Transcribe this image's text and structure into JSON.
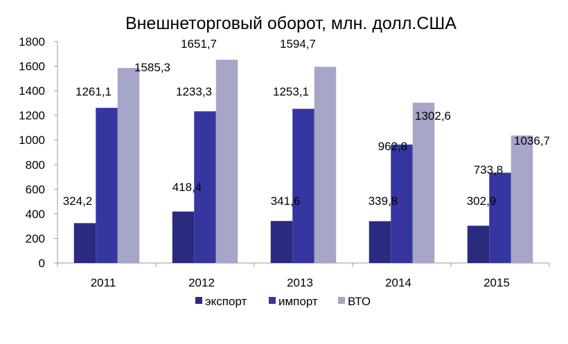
{
  "chart_data": {
    "type": "bar",
    "title": "Внешнеторговый оборот, млн. долл.США",
    "xlabel": "",
    "ylabel": "",
    "categories": [
      "2011",
      "2012",
      "2013",
      "2014",
      "2015"
    ],
    "series": [
      {
        "name": "экспорт",
        "color": "#2A2A7E",
        "values": [
          324.2,
          418.4,
          341.6,
          339.8,
          302.9
        ],
        "labels": [
          "324,2",
          "418,4",
          "341,6",
          "339,8",
          "302,9"
        ]
      },
      {
        "name": "импорт",
        "color": "#3636A0",
        "values": [
          1261.1,
          1233.3,
          1253.1,
          962.8,
          733.8
        ],
        "labels": [
          "1261,1",
          "1233,3",
          "1253,1",
          "962,8",
          "733,8"
        ]
      },
      {
        "name": "ВТО",
        "color": "#A5A6C8",
        "values": [
          1585.3,
          1651.7,
          1594.7,
          1302.6,
          1036.7
        ],
        "labels": [
          "1585,3",
          "1651,7",
          "1594,7",
          "1302,6",
          "1036,7"
        ]
      }
    ],
    "ylim": [
      0,
      1800
    ],
    "yticks": [
      "0",
      "200",
      "400",
      "600",
      "800",
      "1000",
      "1200",
      "1400",
      "1600",
      "1800"
    ],
    "grid": false,
    "legend": "bottom"
  }
}
